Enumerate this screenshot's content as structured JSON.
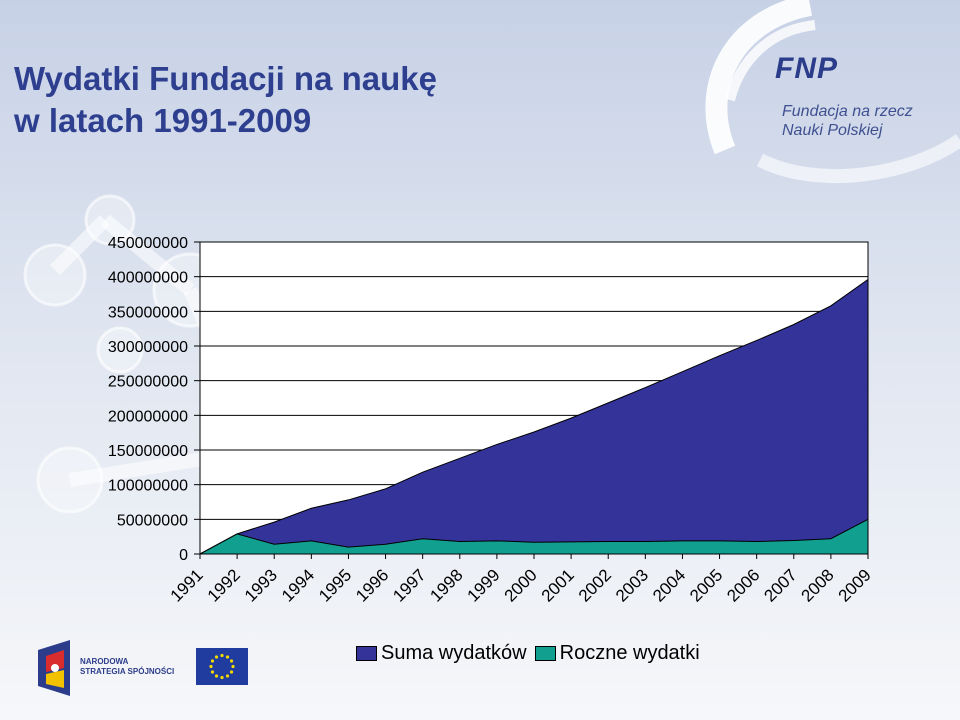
{
  "title": {
    "line1": "Wydatki Fundacji na naukę",
    "line2": "w latach 1991-2009"
  },
  "logos": {
    "fnp": {
      "abbr": "FNP",
      "line1": "Fundacja na rzecz",
      "line2": "Nauki Polskiej"
    },
    "narodowa_strategia": {
      "line1": "NARODOWA",
      "line2": "STRATEGIA SPÓJNOŚCI"
    },
    "eu": "eu-flag-icon"
  },
  "colors": {
    "suma": "#33339a",
    "roczne": "#119f8f",
    "title": "#2e3f8f"
  },
  "chart_data": {
    "type": "area",
    "categories": [
      "1991",
      "1992",
      "1993",
      "1994",
      "1995",
      "1996",
      "1997",
      "1998",
      "1999",
      "2000",
      "2001",
      "2002",
      "2003",
      "2004",
      "2005",
      "2006",
      "2007",
      "2008",
      "2009"
    ],
    "y_ticks": [
      "450000000",
      "400000000",
      "350000000",
      "300000000",
      "250000000",
      "200000000",
      "150000000",
      "100000000",
      "50000000",
      "0"
    ],
    "ylim": [
      0,
      450000000
    ],
    "grid": true,
    "legend_position": "bottom",
    "series": [
      {
        "name": "Suma wydatków",
        "values": [
          0,
          29000000,
          46000000,
          66000000,
          78000000,
          94000000,
          118000000,
          138000000,
          158000000,
          176000000,
          196000000,
          218000000,
          240000000,
          263000000,
          286000000,
          308000000,
          331000000,
          358000000,
          396000000
        ]
      },
      {
        "name": "Roczne wydatki",
        "values": [
          0,
          29000000,
          14000000,
          19000000,
          10000000,
          14000000,
          22000000,
          18000000,
          19000000,
          17000000,
          17500000,
          18000000,
          18000000,
          19000000,
          19000000,
          18000000,
          19500000,
          22000000,
          50000000
        ]
      }
    ]
  }
}
